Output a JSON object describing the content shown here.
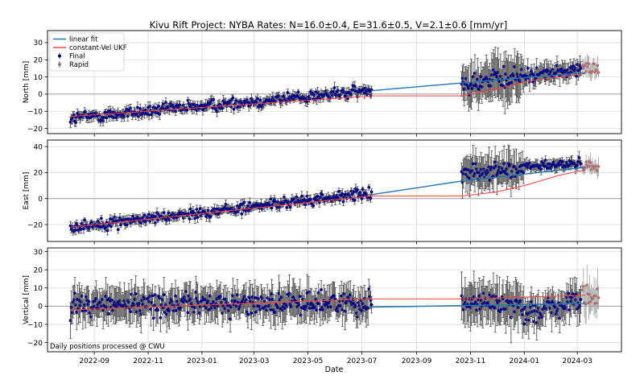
{
  "title": "Kivu Rift Project: NYBA  Rates: N=16.0±0.4, E=31.6±0.5, V=2.1±0.6 [mm/yr]",
  "footnote": "Daily positions processed @ CWU",
  "xlabel": "Date",
  "legend": {
    "placement": "top-left",
    "entries": [
      {
        "label": "linear fit",
        "color": "#1f77b4",
        "kind": "line"
      },
      {
        "label": "constant-Vel UKF",
        "color": "#ff4040",
        "kind": "line"
      },
      {
        "label": "Final",
        "color": "#00008b",
        "kind": "errorbar"
      },
      {
        "label": "Rapid",
        "color": "#a0522d",
        "kind": "errorbar"
      }
    ]
  },
  "chart_data": {
    "type": "scatter",
    "x_ticks": [
      "2022-09",
      "2022-11",
      "2023-01",
      "2023-03",
      "2023-05",
      "2023-07",
      "2023-09",
      "2023-11",
      "2024-01",
      "2024-03"
    ],
    "x_range": [
      "2022-07-10",
      "2024-04-20"
    ],
    "grid": true,
    "colors": {
      "final": "#00008b",
      "rapid": "#b07070",
      "errorbar": "#555555",
      "linear_fit": "#1f77b4",
      "ukf": "#ff4040"
    },
    "panels": [
      {
        "ylabel": "North [mm]",
        "yticks": [
          -20,
          -10,
          0,
          10,
          20,
          30
        ],
        "ylim": [
          -23,
          37
        ],
        "rate": 16.0,
        "segments": [
          {
            "from": "2022-08-05",
            "to": "2023-07-12",
            "start": -14,
            "end": 2,
            "sigma": 2.5,
            "scatter": 3.5
          },
          {
            "from": "2023-10-22",
            "to": "2023-12-31",
            "start": 6,
            "end": 10,
            "sigma": 12,
            "scatter": 6
          },
          {
            "from": "2024-01-01",
            "to": "2024-03-05",
            "start": 11,
            "end": 14,
            "sigma": 5,
            "scatter": 4
          }
        ],
        "rapid": {
          "from": "2024-03-07",
          "to": "2024-03-25",
          "mean": 15,
          "sigma": 5,
          "scatter": 4
        },
        "linear_fit": [
          [
            "2023-07-12",
            2.0
          ],
          [
            "2023-10-22",
            6.5
          ],
          [
            "2024-03-10",
            12.5
          ]
        ],
        "ukf": [
          [
            "2022-08-05",
            -13
          ],
          [
            "2023-07-12",
            -1
          ],
          [
            "2023-10-22",
            -1
          ],
          [
            "2023-11-30",
            3
          ],
          [
            "2024-01-10",
            8
          ],
          [
            "2024-03-10",
            12
          ]
        ]
      },
      {
        "ylabel": "East [mm]",
        "yticks": [
          -20,
          0,
          20,
          40
        ],
        "ylim": [
          -33,
          45
        ],
        "rate": 31.6,
        "segments": [
          {
            "from": "2022-08-05",
            "to": "2023-07-12",
            "start": -22,
            "end": 4,
            "sigma": 3,
            "scatter": 4
          },
          {
            "from": "2023-10-22",
            "to": "2023-12-31",
            "start": 20,
            "end": 22,
            "sigma": 12,
            "scatter": 6
          },
          {
            "from": "2024-01-01",
            "to": "2024-03-05",
            "start": 24,
            "end": 27,
            "sigma": 4,
            "scatter": 4
          }
        ],
        "rapid": {
          "from": "2024-03-07",
          "to": "2024-03-25",
          "mean": 25,
          "sigma": 6,
          "scatter": 4
        },
        "linear_fit": [
          [
            "2023-07-12",
            3.0
          ],
          [
            "2023-10-22",
            13.5
          ],
          [
            "2024-03-10",
            24.0
          ]
        ],
        "ukf": [
          [
            "2022-08-05",
            -22
          ],
          [
            "2023-07-12",
            2
          ],
          [
            "2023-10-22",
            2
          ],
          [
            "2023-11-30",
            5
          ],
          [
            "2024-01-01",
            10
          ],
          [
            "2024-02-10",
            18
          ],
          [
            "2024-03-10",
            22
          ]
        ]
      },
      {
        "ylabel": "Vertical [mm]",
        "yticks": [
          -20,
          -10,
          0,
          10,
          20,
          30
        ],
        "ylim": [
          -25,
          32
        ],
        "rate": 2.1,
        "segments": [
          {
            "from": "2022-08-05",
            "to": "2023-07-12",
            "start": 1,
            "end": 2,
            "sigma": 8,
            "scatter": 6
          },
          {
            "from": "2023-10-22",
            "to": "2023-12-31",
            "start": 3,
            "end": 0,
            "sigma": 11,
            "scatter": 6
          },
          {
            "from": "2024-01-01",
            "to": "2024-03-05",
            "start": -3,
            "end": 2,
            "sigma": 8,
            "scatter": 6
          }
        ],
        "rapid": {
          "from": "2024-03-07",
          "to": "2024-03-25",
          "mean": 5,
          "sigma": 9,
          "scatter": 6
        },
        "linear_fit": [
          [
            "2023-07-12",
            -0.5
          ],
          [
            "2024-03-10",
            1.5
          ]
        ],
        "ukf": [
          [
            "2022-08-05",
            -2
          ],
          [
            "2023-07-12",
            4
          ],
          [
            "2023-10-22",
            4
          ],
          [
            "2024-03-10",
            6
          ]
        ]
      }
    ]
  }
}
